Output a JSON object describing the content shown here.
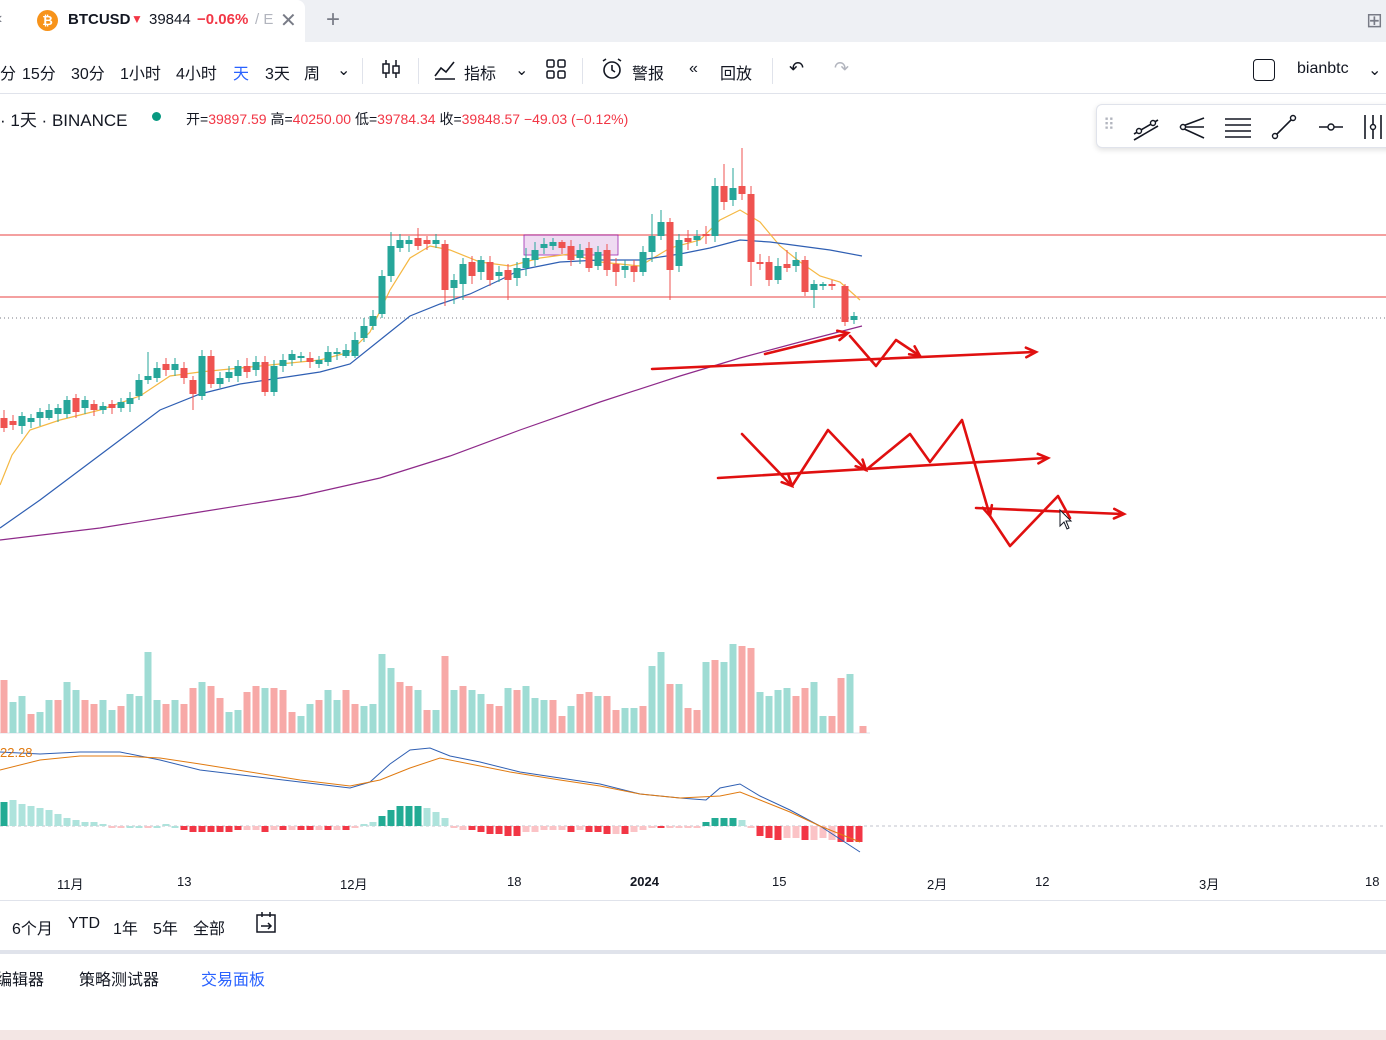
{
  "tab": {
    "symbol": "BTCUSD",
    "arrow": "▼",
    "price": "39844",
    "change": "−0.06%",
    "truncated": "/ E",
    "close": "✕",
    "new_tab": "+",
    "coin_glyph": "₿"
  },
  "toolbar": {
    "intervals": [
      "分",
      "15分",
      "30分",
      "1小时",
      "4小时",
      "天",
      "3天",
      "周"
    ],
    "active_interval": "天",
    "indicators_label": "指标",
    "alerts_label": "警报",
    "replay_label": "回放",
    "username": "bianbtc"
  },
  "legend": {
    "title": "· 1天 · BINANCE",
    "open_label": "开=",
    "open": "39897.59",
    "high_label": "高=",
    "high": "40250.00",
    "low_label": "低=",
    "low": "39784.34",
    "close_label": "收=",
    "close": "39848.57",
    "change": "−49.03 (−0.12%)"
  },
  "macd": {
    "value": "22.28"
  },
  "chart_data": {
    "type": "candlestick",
    "symbol": "BTCUSD",
    "exchange": "BINANCE",
    "interval": "1D",
    "x_tick_labels": [
      "11月",
      "13",
      "12月",
      "18",
      "2024",
      "15",
      "2月",
      "12",
      "3月",
      "18"
    ],
    "horizontal_levels_note": "two red horizontal resistance/support lines and a dotted last-price line",
    "annotations": "hand-drawn red arrows projecting zig-zag price paths",
    "colors": {
      "up": "#26a69a",
      "down": "#ef5350",
      "ma_fast": "#f5b843",
      "ma_mid": "#2f5fb3",
      "ma_slow": "#8e2a8a",
      "drawing": "#e01010"
    }
  },
  "ranges": [
    "6个月",
    "YTD",
    "1年",
    "5年",
    "全部"
  ],
  "bottom_tabs": [
    "编辑器",
    "策略测试器",
    "交易面板"
  ],
  "active_bottom_tab": "交易面板"
}
